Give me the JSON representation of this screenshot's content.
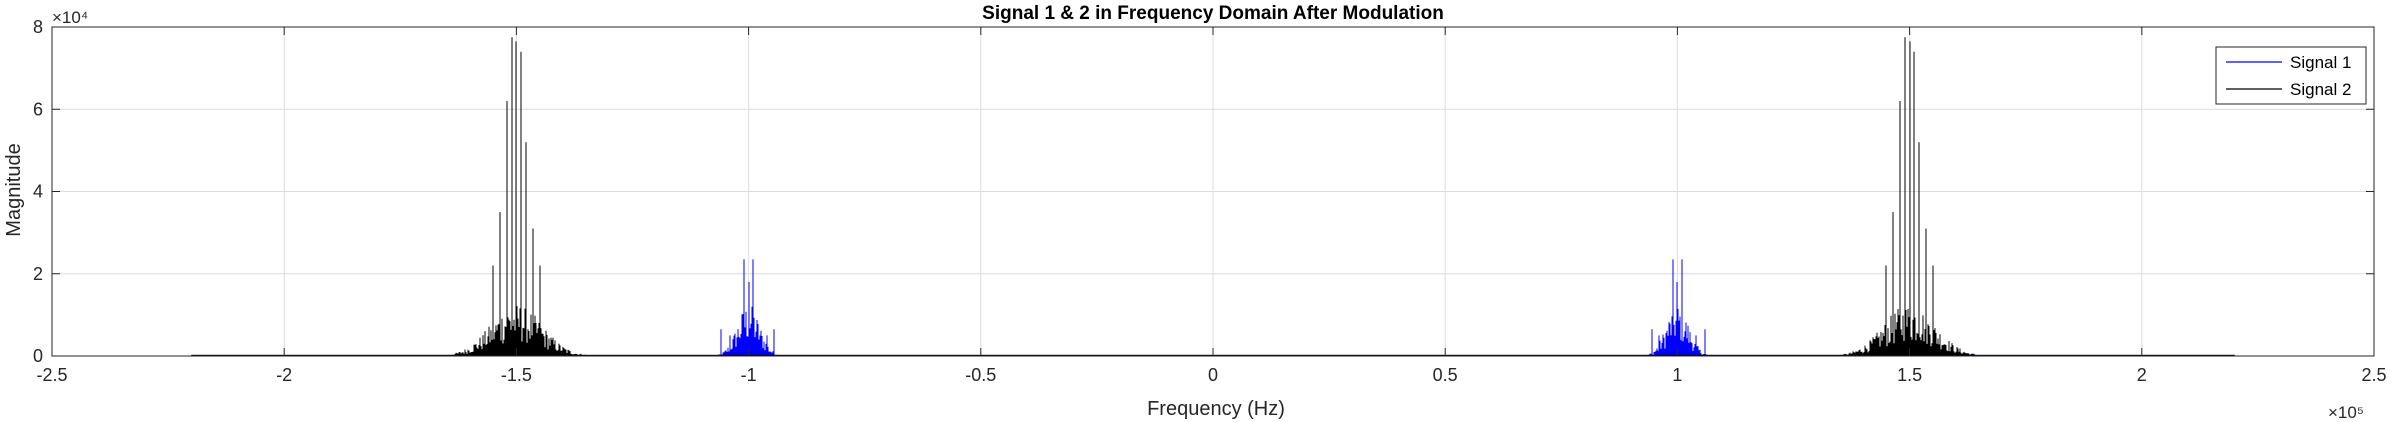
{
  "chart_data": {
    "type": "line",
    "title": "Signal 1 & 2 in Frequency Domain After Modulation",
    "xlabel": "Frequency (Hz)",
    "ylabel": "Magnitude",
    "x_exponent_label": "×10⁵",
    "y_exponent_label": "×10⁴",
    "xlim": [
      -250000,
      250000
    ],
    "ylim": [
      0,
      80000
    ],
    "x_ticks": [
      -250000,
      -200000,
      -150000,
      -100000,
      -50000,
      0,
      50000,
      100000,
      150000,
      200000,
      250000
    ],
    "x_tick_labels": [
      "-2.5",
      "-2",
      "-1.5",
      "-1",
      "-0.5",
      "0",
      "0.5",
      "1",
      "1.5",
      "2",
      "2.5"
    ],
    "y_ticks": [
      0,
      20000,
      40000,
      60000,
      80000
    ],
    "y_tick_labels": [
      "0",
      "2",
      "4",
      "6",
      "8"
    ],
    "grid": true,
    "legend_position": "top-right",
    "x_data_range": [
      -220000,
      220000
    ],
    "series": [
      {
        "name": "Signal 1",
        "color": "#0000ff",
        "bands": [
          {
            "center": -100000,
            "halfwidth": 7000,
            "peaks": [
              [
                -101000,
                23500
              ],
              [
                -99000,
                23500
              ],
              [
                -100000,
                18000
              ],
              [
                -106000,
                6500
              ],
              [
                -94500,
                6500
              ],
              [
                -104000,
                5000
              ],
              [
                -96000,
                5000
              ]
            ]
          },
          {
            "center": 100000,
            "halfwidth": 7000,
            "peaks": [
              [
                99000,
                23500
              ],
              [
                101000,
                23500
              ],
              [
                100000,
                18000
              ],
              [
                94500,
                6500
              ],
              [
                106000,
                6500
              ],
              [
                96000,
                5000
              ],
              [
                104000,
                5000
              ]
            ]
          }
        ]
      },
      {
        "name": "Signal 2",
        "color": "#000000",
        "bands": [
          {
            "center": -150000,
            "halfwidth": 16000,
            "peaks": [
              [
                -151000,
                77500
              ],
              [
                -150000,
                76500
              ],
              [
                -149000,
                74000
              ],
              [
                -152000,
                62000
              ],
              [
                -148000,
                52000
              ],
              [
                -153500,
                35000
              ],
              [
                -146500,
                31000
              ],
              [
                -155000,
                22000
              ],
              [
                -145000,
                22000
              ]
            ]
          },
          {
            "center": 150000,
            "halfwidth": 16000,
            "peaks": [
              [
                149000,
                77500
              ],
              [
                150000,
                76500
              ],
              [
                151000,
                74000
              ],
              [
                148000,
                62000
              ],
              [
                152000,
                52000
              ],
              [
                146500,
                35000
              ],
              [
                153500,
                31000
              ],
              [
                145000,
                22000
              ],
              [
                155000,
                22000
              ]
            ]
          }
        ]
      }
    ]
  }
}
